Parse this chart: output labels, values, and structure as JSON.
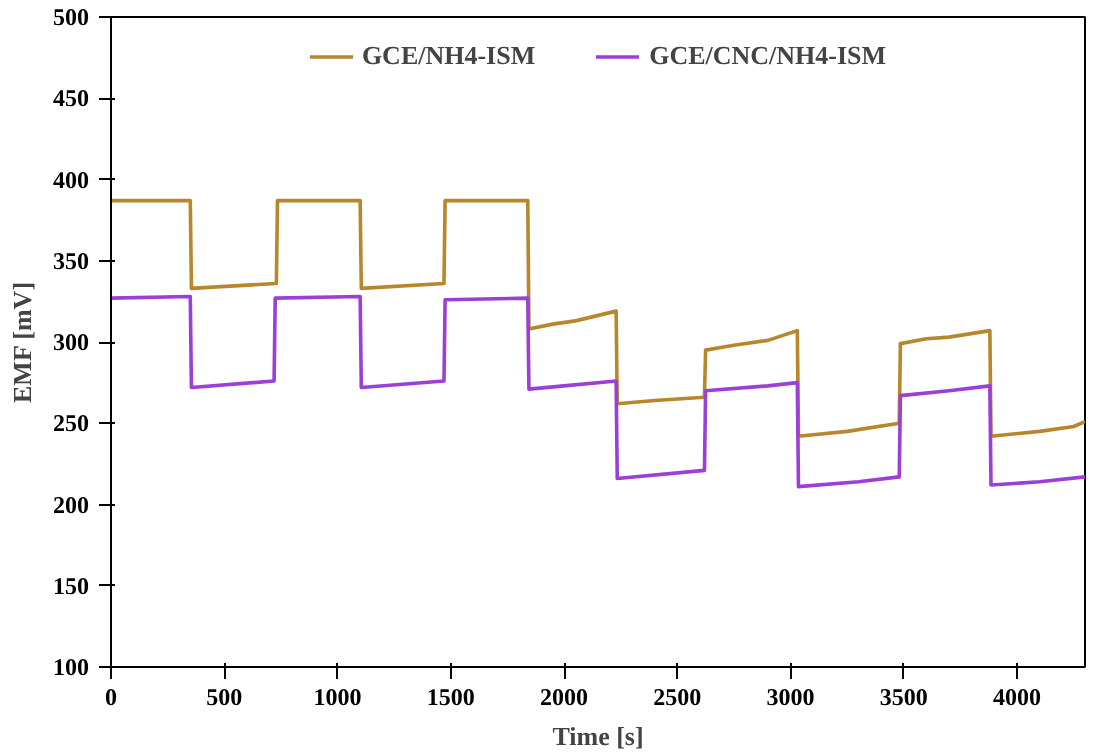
{
  "chart_data": {
    "type": "line",
    "xlabel": "Time [s]",
    "ylabel": "EMF [mV]",
    "xlim": [
      0,
      4300
    ],
    "ylim": [
      100,
      500
    ],
    "xticks": [
      0,
      500,
      1000,
      1500,
      2000,
      2500,
      3000,
      3500,
      4000
    ],
    "yticks": [
      100,
      150,
      200,
      250,
      300,
      350,
      400,
      450,
      500
    ],
    "grid": false,
    "legend": "top",
    "marker": "none",
    "line_style": "solid",
    "series": [
      {
        "name": "GCE/NH4-ISM",
        "color": "#b8862b",
        "x": [
          0,
          350,
          355,
          730,
          735,
          1100,
          1105,
          1470,
          1475,
          1840,
          1845,
          1950,
          2050,
          2230,
          2235,
          2400,
          2620,
          2625,
          2750,
          2900,
          3030,
          3035,
          3250,
          3480,
          3485,
          3600,
          3700,
          3880,
          3885,
          4100,
          4250,
          4300
        ],
        "values": [
          387,
          387,
          333,
          336,
          387,
          387,
          333,
          336,
          387,
          387,
          308,
          311,
          313,
          319,
          262,
          264,
          266,
          295,
          298,
          301,
          307,
          242,
          245,
          250,
          299,
          302,
          303,
          307,
          242,
          245,
          248,
          251
        ]
      },
      {
        "name": "GCE/CNC/NH4-ISM",
        "color": "#9b3fd6",
        "x": [
          0,
          350,
          355,
          720,
          725,
          1100,
          1105,
          1470,
          1475,
          1840,
          1845,
          2000,
          2230,
          2235,
          2620,
          2625,
          2900,
          3030,
          3035,
          3300,
          3480,
          3485,
          3700,
          3880,
          3885,
          4100,
          4300
        ],
        "values": [
          327,
          328,
          272,
          276,
          327,
          328,
          272,
          276,
          326,
          327,
          271,
          273,
          276,
          216,
          221,
          270,
          273,
          275,
          211,
          214,
          217,
          267,
          270,
          273,
          212,
          214,
          217
        ]
      }
    ]
  }
}
